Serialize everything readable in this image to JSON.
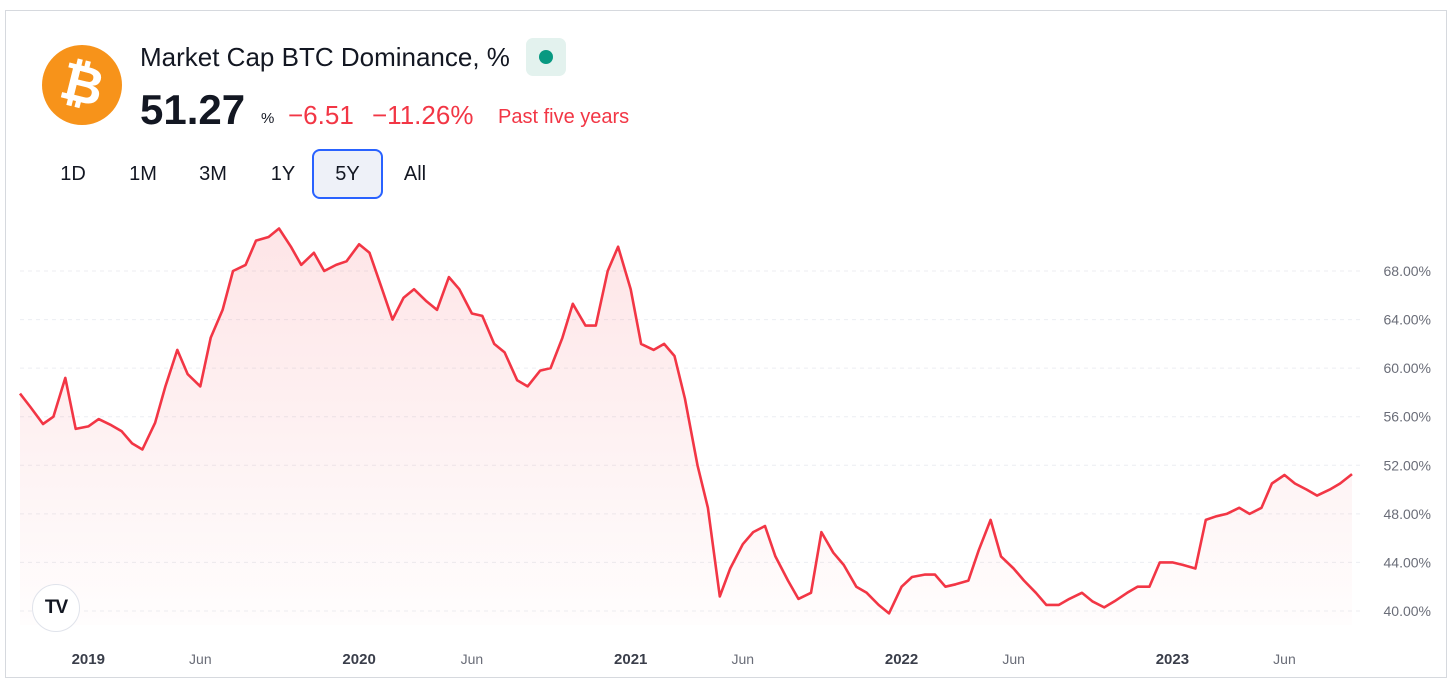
{
  "header": {
    "title": "Market Cap BTC Dominance, %",
    "logo_glyph": "₿",
    "value": "51.27",
    "unit": "%",
    "change": "−6.51",
    "change_pct": "−11.26%",
    "period": "Past five years"
  },
  "ranges": [
    "1D",
    "1M",
    "3M",
    "1Y",
    "5Y",
    "All"
  ],
  "active_range": "5Y",
  "badge": "TV",
  "colors": {
    "line": "#f23645",
    "logo": "#f7931a",
    "status_dot": "#089981",
    "active_border": "#2962ff"
  },
  "chart_data": {
    "type": "area",
    "title": "Market Cap BTC Dominance, %",
    "xlabel": "",
    "ylabel": "",
    "x_range": [
      "2018-10-01",
      "2023-08-31"
    ],
    "ylim": [
      36.0,
      76.0
    ],
    "ytick_values": [
      40,
      44,
      48,
      52,
      56,
      60,
      64,
      68
    ],
    "ytick_labels": [
      "40.00%",
      "44.00%",
      "48.00%",
      "52.00%",
      "56.00%",
      "60.00%",
      "64.00%",
      "68.00%"
    ],
    "xticks": [
      {
        "date": "2019-01-01",
        "label": "2019",
        "year": true
      },
      {
        "date": "2019-06-01",
        "label": "Jun",
        "year": false
      },
      {
        "date": "2020-01-01",
        "label": "2020",
        "year": true
      },
      {
        "date": "2020-06-01",
        "label": "Jun",
        "year": false
      },
      {
        "date": "2021-01-01",
        "label": "2021",
        "year": true
      },
      {
        "date": "2021-06-01",
        "label": "Jun",
        "year": false
      },
      {
        "date": "2022-01-01",
        "label": "2022",
        "year": true
      },
      {
        "date": "2022-06-01",
        "label": "Jun",
        "year": false
      },
      {
        "date": "2023-01-01",
        "label": "2023",
        "year": true
      },
      {
        "date": "2023-06-01",
        "label": "Jun",
        "year": false
      }
    ],
    "grid": true,
    "series": [
      {
        "points": [
          [
            "2018-10-01",
            57.9
          ],
          [
            "2018-10-15",
            56.8
          ],
          [
            "2018-11-01",
            55.4
          ],
          [
            "2018-11-15",
            56.0
          ],
          [
            "2018-12-01",
            59.2
          ],
          [
            "2018-12-15",
            55.0
          ],
          [
            "2019-01-01",
            55.2
          ],
          [
            "2019-01-15",
            55.8
          ],
          [
            "2019-02-01",
            55.3
          ],
          [
            "2019-02-15",
            54.8
          ],
          [
            "2019-03-01",
            53.8
          ],
          [
            "2019-03-15",
            53.3
          ],
          [
            "2019-04-01",
            55.5
          ],
          [
            "2019-04-15",
            58.5
          ],
          [
            "2019-05-01",
            61.5
          ],
          [
            "2019-05-15",
            59.5
          ],
          [
            "2019-06-01",
            58.5
          ],
          [
            "2019-06-15",
            62.5
          ],
          [
            "2019-07-01",
            64.8
          ],
          [
            "2019-07-15",
            68.0
          ],
          [
            "2019-08-01",
            68.5
          ],
          [
            "2019-08-15",
            70.5
          ],
          [
            "2019-09-01",
            70.8
          ],
          [
            "2019-09-15",
            71.5
          ],
          [
            "2019-10-01",
            70.0
          ],
          [
            "2019-10-15",
            68.5
          ],
          [
            "2019-11-01",
            69.5
          ],
          [
            "2019-11-15",
            68.0
          ],
          [
            "2019-12-01",
            68.5
          ],
          [
            "2019-12-15",
            68.8
          ],
          [
            "2020-01-01",
            70.2
          ],
          [
            "2020-01-15",
            69.5
          ],
          [
            "2020-02-01",
            66.5
          ],
          [
            "2020-02-15",
            64.0
          ],
          [
            "2020-03-01",
            65.8
          ],
          [
            "2020-03-15",
            66.5
          ],
          [
            "2020-04-01",
            65.5
          ],
          [
            "2020-04-15",
            64.8
          ],
          [
            "2020-05-01",
            67.5
          ],
          [
            "2020-05-15",
            66.5
          ],
          [
            "2020-06-01",
            64.5
          ],
          [
            "2020-06-15",
            64.3
          ],
          [
            "2020-07-01",
            62.0
          ],
          [
            "2020-07-15",
            61.3
          ],
          [
            "2020-08-01",
            59.0
          ],
          [
            "2020-08-15",
            58.5
          ],
          [
            "2020-09-01",
            59.8
          ],
          [
            "2020-09-15",
            60.0
          ],
          [
            "2020-10-01",
            62.5
          ],
          [
            "2020-10-15",
            65.3
          ],
          [
            "2020-11-01",
            63.5
          ],
          [
            "2020-11-15",
            63.5
          ],
          [
            "2020-12-01",
            68.0
          ],
          [
            "2020-12-15",
            70.0
          ],
          [
            "2021-01-01",
            66.5
          ],
          [
            "2021-01-15",
            62.0
          ],
          [
            "2021-02-01",
            61.5
          ],
          [
            "2021-02-15",
            62.0
          ],
          [
            "2021-03-01",
            61.0
          ],
          [
            "2021-03-15",
            57.5
          ],
          [
            "2021-04-01",
            52.0
          ],
          [
            "2021-04-15",
            48.5
          ],
          [
            "2021-05-01",
            41.2
          ],
          [
            "2021-05-15",
            43.5
          ],
          [
            "2021-06-01",
            45.5
          ],
          [
            "2021-06-15",
            46.5
          ],
          [
            "2021-07-01",
            47.0
          ],
          [
            "2021-07-15",
            44.5
          ],
          [
            "2021-08-01",
            42.5
          ],
          [
            "2021-08-15",
            41.0
          ],
          [
            "2021-09-01",
            41.5
          ],
          [
            "2021-09-15",
            46.5
          ],
          [
            "2021-10-01",
            44.8
          ],
          [
            "2021-10-15",
            43.8
          ],
          [
            "2021-11-01",
            42.0
          ],
          [
            "2021-11-15",
            41.5
          ],
          [
            "2021-12-01",
            40.5
          ],
          [
            "2021-12-15",
            39.8
          ],
          [
            "2022-01-01",
            42.0
          ],
          [
            "2022-01-15",
            42.8
          ],
          [
            "2022-02-01",
            43.0
          ],
          [
            "2022-02-15",
            43.0
          ],
          [
            "2022-03-01",
            42.0
          ],
          [
            "2022-03-15",
            42.2
          ],
          [
            "2022-04-01",
            42.5
          ],
          [
            "2022-04-15",
            45.0
          ],
          [
            "2022-05-01",
            47.5
          ],
          [
            "2022-05-15",
            44.5
          ],
          [
            "2022-06-01",
            43.5
          ],
          [
            "2022-06-15",
            42.5
          ],
          [
            "2022-07-01",
            41.5
          ],
          [
            "2022-07-15",
            40.5
          ],
          [
            "2022-08-01",
            40.5
          ],
          [
            "2022-08-15",
            41.0
          ],
          [
            "2022-09-01",
            41.5
          ],
          [
            "2022-09-15",
            40.8
          ],
          [
            "2022-10-01",
            40.3
          ],
          [
            "2022-10-15",
            40.8
          ],
          [
            "2022-11-01",
            41.5
          ],
          [
            "2022-11-15",
            42.0
          ],
          [
            "2022-12-01",
            42.0
          ],
          [
            "2022-12-15",
            44.0
          ],
          [
            "2023-01-01",
            44.0
          ],
          [
            "2023-01-15",
            43.8
          ],
          [
            "2023-02-01",
            43.5
          ],
          [
            "2023-02-15",
            47.5
          ],
          [
            "2023-03-01",
            47.8
          ],
          [
            "2023-03-15",
            48.0
          ],
          [
            "2023-04-01",
            48.5
          ],
          [
            "2023-04-15",
            48.0
          ],
          [
            "2023-05-01",
            48.5
          ],
          [
            "2023-05-15",
            50.5
          ],
          [
            "2023-06-01",
            51.2
          ],
          [
            "2023-06-15",
            50.5
          ],
          [
            "2023-07-01",
            50.0
          ],
          [
            "2023-07-15",
            49.5
          ],
          [
            "2023-08-01",
            50.0
          ],
          [
            "2023-08-15",
            50.5
          ],
          [
            "2023-08-31",
            51.27
          ]
        ]
      }
    ]
  }
}
